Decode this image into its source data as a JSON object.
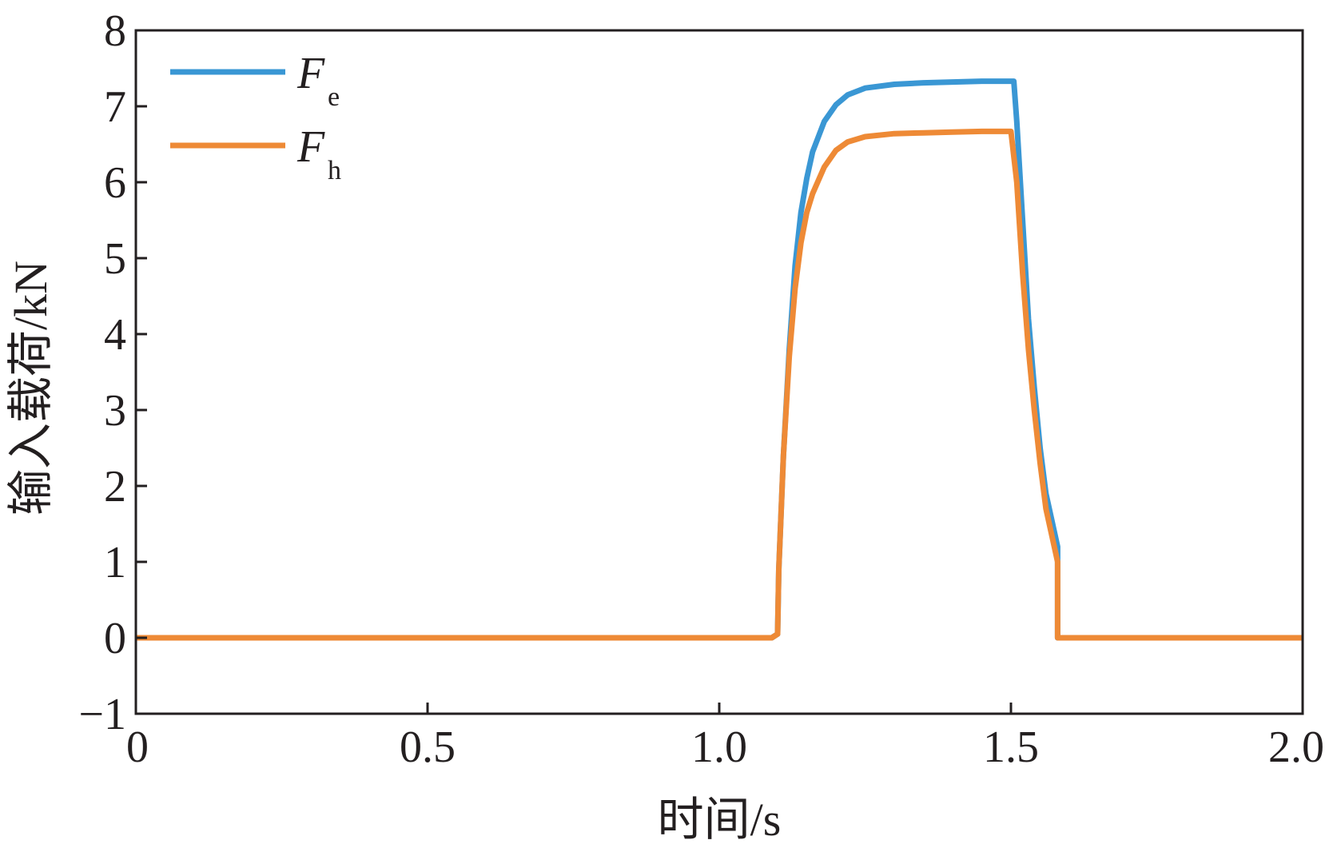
{
  "chart_data": {
    "type": "line",
    "title": "",
    "xlabel": "时间/s",
    "ylabel": "输入载荷/kN",
    "xlim": [
      0,
      2.0
    ],
    "ylim": [
      -1,
      8
    ],
    "x_ticks": [
      0,
      0.5,
      1.0,
      1.5,
      2.0
    ],
    "x_tick_labels": [
      "0",
      "0.5",
      "1.0",
      "1.5",
      "2.0"
    ],
    "y_ticks": [
      -1,
      0,
      1,
      2,
      3,
      4,
      5,
      6,
      7,
      8
    ],
    "y_tick_labels": [
      "−1",
      "0",
      "1",
      "2",
      "3",
      "4",
      "5",
      "6",
      "7",
      "8"
    ],
    "grid": false,
    "legend_position": "top-left",
    "series": [
      {
        "name": "F",
        "subscript": "e",
        "color": "#3a97d4",
        "x": [
          0,
          1.09,
          1.1,
          1.102,
          1.11,
          1.12,
          1.13,
          1.14,
          1.15,
          1.16,
          1.18,
          1.2,
          1.22,
          1.25,
          1.3,
          1.35,
          1.4,
          1.45,
          1.49,
          1.505,
          1.51,
          1.52,
          1.53,
          1.54,
          1.55,
          1.56,
          1.58,
          1.58,
          1.59,
          2.0
        ],
        "y": [
          0,
          0,
          0.05,
          0.9,
          2.4,
          3.8,
          4.9,
          5.6,
          6.05,
          6.4,
          6.8,
          7.02,
          7.15,
          7.24,
          7.29,
          7.31,
          7.32,
          7.33,
          7.33,
          7.33,
          6.8,
          5.5,
          4.2,
          3.3,
          2.5,
          1.9,
          1.2,
          0,
          0,
          0
        ]
      },
      {
        "name": "F",
        "subscript": "h",
        "color": "#ee8a36",
        "x": [
          0,
          1.09,
          1.1,
          1.102,
          1.11,
          1.12,
          1.13,
          1.14,
          1.15,
          1.16,
          1.18,
          1.2,
          1.22,
          1.25,
          1.3,
          1.35,
          1.4,
          1.45,
          1.49,
          1.5,
          1.51,
          1.52,
          1.53,
          1.54,
          1.55,
          1.56,
          1.58,
          1.58,
          1.59,
          2.0
        ],
        "y": [
          0,
          0,
          0.05,
          0.9,
          2.4,
          3.7,
          4.6,
          5.2,
          5.6,
          5.85,
          6.2,
          6.42,
          6.53,
          6.6,
          6.64,
          6.65,
          6.66,
          6.67,
          6.67,
          6.67,
          6.0,
          4.8,
          3.8,
          3.0,
          2.3,
          1.7,
          1.0,
          0,
          0,
          0
        ]
      }
    ]
  }
}
